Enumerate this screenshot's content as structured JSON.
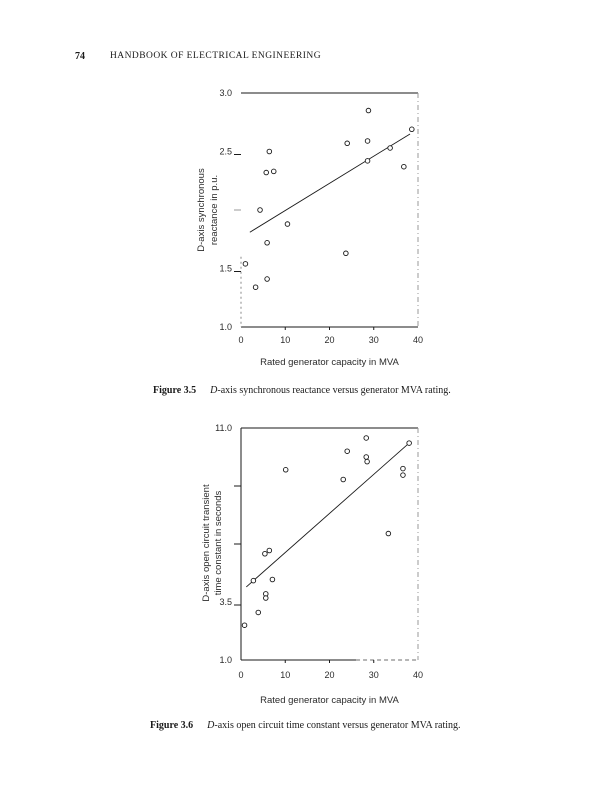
{
  "page": {
    "page_number": "74",
    "header_title": "HANDBOOK OF ELECTRICAL ENGINEERING"
  },
  "figures": [
    {
      "caption_label": "Figure 3.5",
      "caption_italic": "D",
      "caption_rest": "-axis synchronous reactance versus generator MVA rating."
    },
    {
      "caption_label": "Figure 3.6",
      "caption_italic": "D",
      "caption_rest": "-axis open circuit time constant versus generator MVA rating."
    }
  ],
  "chart_data": [
    {
      "type": "scatter",
      "title": "",
      "xlabel": "Rated generator capacity in MVA",
      "ylabel_lines": [
        "D-axis synchronous",
        "reactance in p.u."
      ],
      "xlim": [
        0,
        40
      ],
      "ylim": [
        1.0,
        3.0
      ],
      "grid": false,
      "legend": null,
      "xticks": [
        {
          "value": 0,
          "label": "0"
        },
        {
          "value": 10,
          "label": "10"
        },
        {
          "value": 20,
          "label": "20"
        },
        {
          "value": 30,
          "label": "30"
        },
        {
          "value": 40,
          "label": "40"
        }
      ],
      "yticks": [
        {
          "value": 3.0,
          "label": "3.0"
        },
        {
          "value": 2.5,
          "label": "2.5"
        },
        {
          "value": 2.0,
          "label": "",
          "faint": true
        },
        {
          "value": 1.5,
          "label": "1.5"
        },
        {
          "value": 1.0,
          "label": "1.0"
        }
      ],
      "points": [
        [
          28.8,
          2.85
        ],
        [
          38.6,
          2.69
        ],
        [
          28.6,
          2.59
        ],
        [
          24.0,
          2.57
        ],
        [
          33.7,
          2.53
        ],
        [
          6.4,
          2.5
        ],
        [
          28.6,
          2.42
        ],
        [
          36.8,
          2.37
        ],
        [
          7.4,
          2.33
        ],
        [
          5.7,
          2.32
        ],
        [
          4.3,
          2.0
        ],
        [
          10.5,
          1.88
        ],
        [
          5.9,
          1.72
        ],
        [
          23.7,
          1.63
        ],
        [
          1.0,
          1.54
        ],
        [
          5.9,
          1.41
        ],
        [
          3.3,
          1.34
        ]
      ],
      "trend_line": {
        "x1": 2.0,
        "y1": 1.81,
        "x2": 38.2,
        "y2": 2.65
      }
    },
    {
      "type": "scatter",
      "title": "",
      "xlabel": "Rated generator capacity in MVA",
      "ylabel_lines": [
        "D-axis open circuit transient",
        "time constant in seconds"
      ],
      "xlim": [
        0,
        40
      ],
      "ylim": [
        1.0,
        11.0
      ],
      "grid": false,
      "legend": null,
      "xticks": [
        {
          "value": 0,
          "label": "0"
        },
        {
          "value": 10,
          "label": "10"
        },
        {
          "value": 20,
          "label": "20"
        },
        {
          "value": 30,
          "label": "30"
        },
        {
          "value": 40,
          "label": "40"
        }
      ],
      "yticks": [
        {
          "value": 11.0,
          "label": "11.0"
        },
        {
          "value": 8.5,
          "label": ""
        },
        {
          "value": 6.0,
          "label": ""
        },
        {
          "value": 3.5,
          "label": "3.5"
        },
        {
          "value": 1.0,
          "label": "1.0"
        }
      ],
      "points": [
        [
          28.3,
          10.57
        ],
        [
          38.0,
          10.35
        ],
        [
          24.0,
          10.0
        ],
        [
          28.3,
          9.75
        ],
        [
          28.5,
          9.55
        ],
        [
          36.6,
          9.25
        ],
        [
          10.1,
          9.2
        ],
        [
          36.6,
          8.97
        ],
        [
          23.1,
          8.78
        ],
        [
          33.3,
          6.45
        ],
        [
          6.4,
          5.72
        ],
        [
          5.4,
          5.58
        ],
        [
          7.1,
          4.47
        ],
        [
          2.8,
          4.42
        ],
        [
          5.6,
          3.85
        ],
        [
          5.6,
          3.67
        ],
        [
          3.9,
          3.05
        ],
        [
          0.8,
          2.5
        ]
      ],
      "trend_line": {
        "x1": 1.2,
        "y1": 4.15,
        "x2": 38.0,
        "y2": 10.35
      }
    }
  ]
}
